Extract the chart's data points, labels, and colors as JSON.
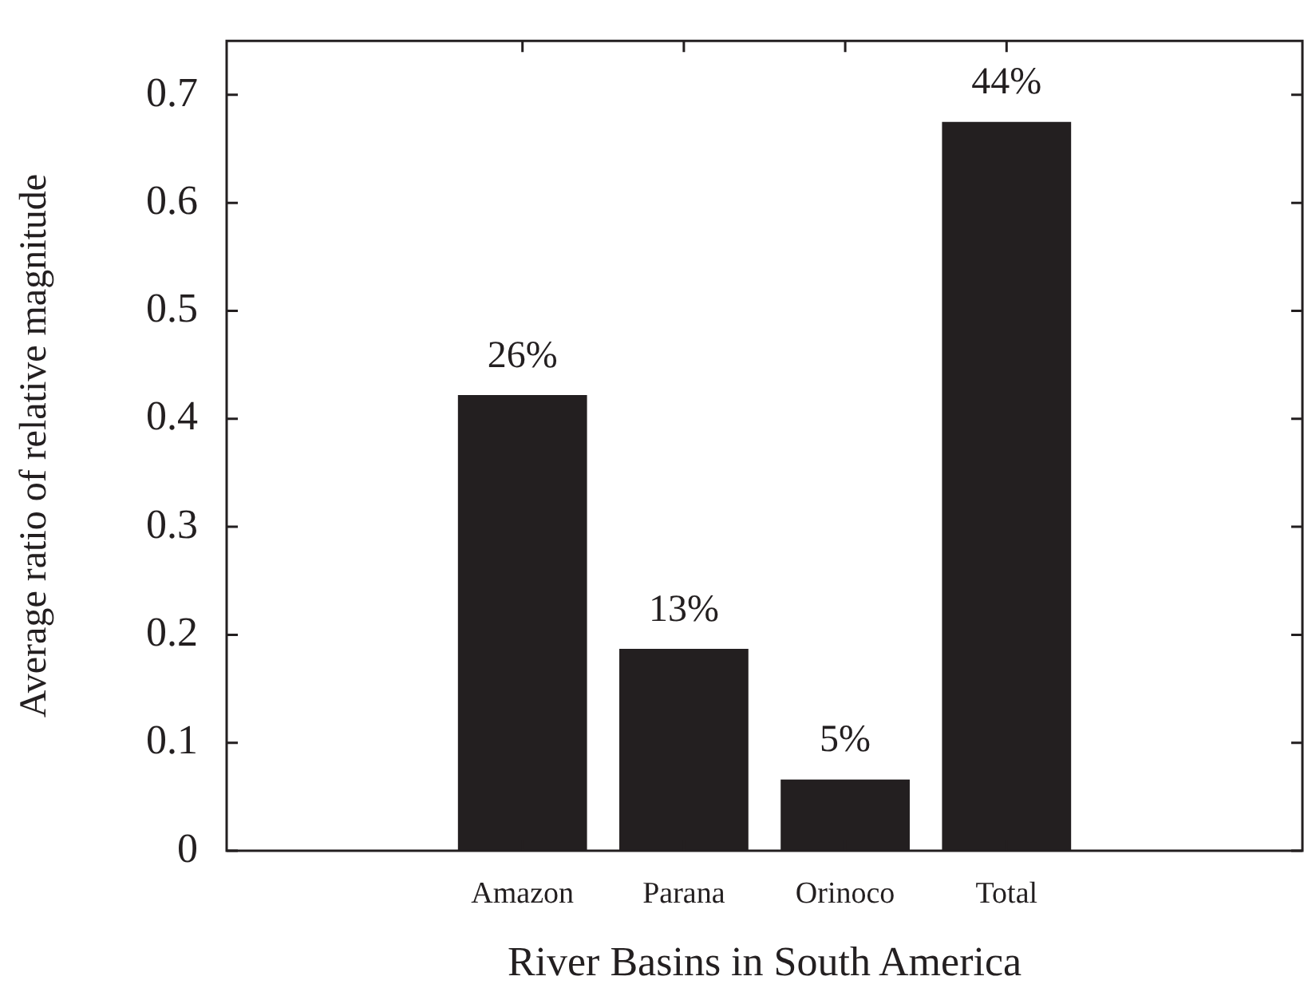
{
  "chart_data": {
    "type": "bar",
    "xlabel": "River Basins in South America",
    "ylabel": "Average ratio of relative magnitude",
    "categories": [
      "Amazon",
      "Parana",
      "Orinoco",
      "Total"
    ],
    "values": [
      0.422,
      0.187,
      0.066,
      0.675
    ],
    "annotations": [
      {
        "text": "26%",
        "x": "Amazon",
        "y": 0.422
      },
      {
        "text": "13%",
        "x": "Parana",
        "y": 0.187
      },
      {
        "text": "5%",
        "x": "Orinoco",
        "y": 0.066
      },
      {
        "text": "44%",
        "x": "Total",
        "y": 0.675
      }
    ],
    "color": "#231f20",
    "ylim": [
      0,
      0.75
    ],
    "yticks": [
      0,
      0.1,
      0.2,
      0.3,
      0.4,
      0.5,
      0.6,
      0.7
    ]
  }
}
